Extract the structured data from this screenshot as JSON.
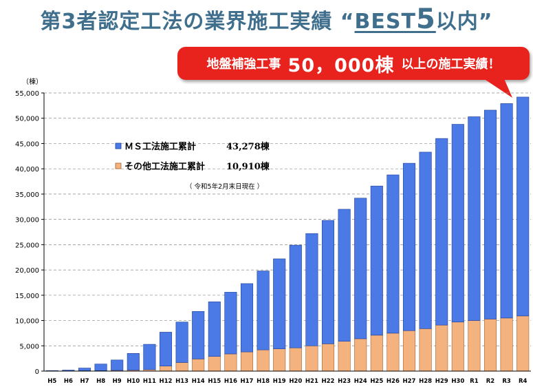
{
  "title": {
    "prefix": "第3者認定工法の業界施工実績 “",
    "best": "BEST",
    "five": "5",
    "suffix": "以内",
    "close": "”"
  },
  "callout": {
    "prefix": "地盤補強工事",
    "number": "50，000棟",
    "suffix": "以上の施工実績！"
  },
  "chart_data": {
    "type": "bar",
    "stacked": true,
    "unit_label": "（棟）",
    "categories": [
      "H5",
      "H6",
      "H7",
      "H8",
      "H9",
      "H10",
      "H11",
      "H12",
      "H13",
      "H14",
      "H15",
      "H16",
      "H17",
      "H18",
      "H19",
      "H20",
      "H21",
      "H22",
      "H23",
      "H24",
      "H25",
      "H26",
      "H27",
      "H28",
      "H29",
      "H30",
      "R1",
      "R2",
      "R3",
      "R4"
    ],
    "series": [
      {
        "name": "その他工法施工累計",
        "color": "#f3b27e",
        "values": [
          20,
          50,
          80,
          100,
          150,
          200,
          300,
          1000,
          1700,
          2400,
          2900,
          3400,
          3800,
          4200,
          4400,
          4600,
          5000,
          5400,
          5900,
          6400,
          7100,
          7500,
          8000,
          8400,
          9100,
          9700,
          10000,
          10300,
          10500,
          10910
        ]
      },
      {
        "name": "ＭＳ工法施工累計",
        "color": "#4b7ae6",
        "values": [
          80,
          150,
          520,
          1300,
          2050,
          3300,
          5000,
          6700,
          8000,
          9400,
          10800,
          12200,
          13500,
          15600,
          17800,
          20300,
          22200,
          24400,
          26100,
          27800,
          29500,
          31300,
          33100,
          34900,
          36900,
          39100,
          40300,
          41300,
          42400,
          43278
        ]
      }
    ],
    "ylim": [
      0,
      55000
    ],
    "yticks": [
      "0",
      "5,000",
      "10,000",
      "15,000",
      "20,000",
      "25,000",
      "30,000",
      "35,000",
      "40,000",
      "45,000",
      "50,000",
      "55,000"
    ],
    "grid": true,
    "legend": {
      "position": "upper-left",
      "entries": [
        {
          "label": "ＭＳ工法施工累計",
          "value": "43,278棟",
          "color": "#4b7ae6"
        },
        {
          "label": "その他工法施工累計",
          "value": "10,910棟",
          "color": "#f3b27e"
        }
      ],
      "note": "（ 令和5年2月末日現在 ）"
    }
  }
}
